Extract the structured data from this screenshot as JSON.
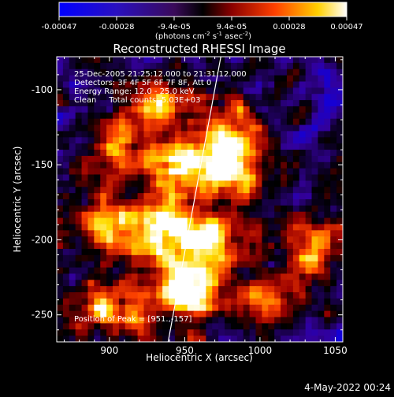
{
  "colorbar": {
    "ticks": [
      "-0.00047",
      "-0.00028",
      "-9.4e-05",
      "9.4e-05",
      "0.00028",
      "0.00047"
    ],
    "units_parts": [
      "(photons cm",
      "-2",
      " s",
      "-1",
      " asec",
      "-2",
      ")"
    ]
  },
  "chart_data": {
    "type": "heatmap",
    "title": "Reconstructed RHESSI Image",
    "xlabel": "Heliocentric X (arcsec)",
    "ylabel": "Heliocentric Y (arcsec)",
    "xlim": [
      865,
      1055
    ],
    "ylim": [
      -268,
      -78
    ],
    "xticks": [
      900,
      950,
      1000,
      1050
    ],
    "yticks": [
      -100,
      -150,
      -200,
      -250
    ],
    "color_range": [
      -0.00047,
      0.00047
    ],
    "colormap": [
      "#0000ff",
      "#330099",
      "#000000",
      "#990000",
      "#ff4400",
      "#ffdd00",
      "#ffffff"
    ],
    "annotation_lines": [
      "25-Dec-2005 21:25:12.000 to 21:31:12.000",
      "Detectors: 3F 4F 5F 6F 7F 8F, Att 0",
      "Energy Range: 12.0 - 25.0 keV",
      "Clean     Total counts: 5.03E+03"
    ],
    "peak_label": "Position of Peak = [951.,-157]",
    "peak": [
      951,
      -157
    ],
    "limb_line": [
      [
        939,
        -268
      ],
      [
        974,
        -78
      ]
    ],
    "bright_sources": [
      {
        "x": 980,
        "y": -152,
        "level": 1.0
      },
      {
        "x": 955,
        "y": -235,
        "level": 0.95
      },
      {
        "x": 945,
        "y": -150,
        "level": 0.85
      },
      {
        "x": 965,
        "y": -200,
        "level": 0.85
      },
      {
        "x": 925,
        "y": -110,
        "level": 0.6
      },
      {
        "x": 900,
        "y": -190,
        "level": 0.7
      },
      {
        "x": 915,
        "y": -240,
        "level": 0.6
      },
      {
        "x": 905,
        "y": -140,
        "level": 0.6
      },
      {
        "x": 975,
        "y": -125,
        "level": 0.6
      },
      {
        "x": 1035,
        "y": -205,
        "level": 0.55
      },
      {
        "x": 1005,
        "y": -240,
        "level": 0.5
      },
      {
        "x": 885,
        "y": -250,
        "level": 0.5
      },
      {
        "x": 930,
        "y": -200,
        "level": 0.55
      },
      {
        "x": 940,
        "y": -185,
        "level": 0.5
      }
    ]
  },
  "footer": {
    "timestamp": "4-May-2022 00:24"
  }
}
